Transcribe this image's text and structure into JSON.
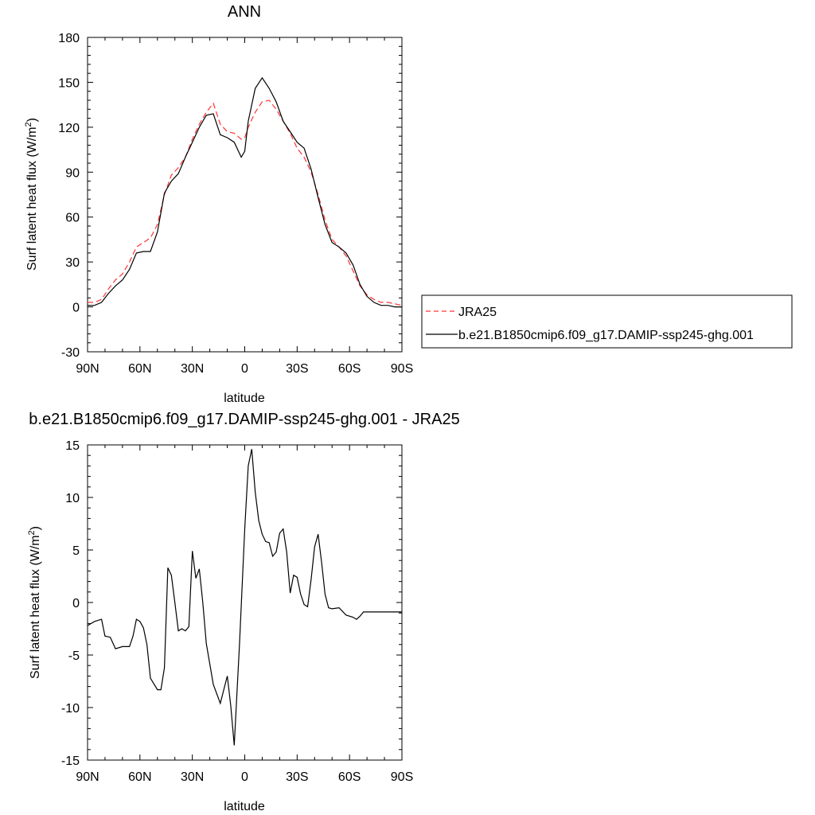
{
  "chart_data": [
    {
      "type": "line",
      "title": "ANN",
      "xlabel": "latitude",
      "ylabel": "Surf latent heat flux (W/m",
      "ylabel_sup": "2",
      "ylabel_close": ")",
      "xlim": [
        90,
        -90
      ],
      "ylim": [
        -30,
        180
      ],
      "x_tick_values": [
        90,
        60,
        30,
        0,
        -30,
        -60,
        -90
      ],
      "x_tick_labels": [
        "90N",
        "60N",
        "30N",
        "0",
        "30S",
        "60S",
        "90S"
      ],
      "y_tick_values": [
        -30,
        0,
        30,
        60,
        90,
        120,
        150,
        180
      ],
      "y_tick_labels": [
        "-30",
        "0",
        "30",
        "60",
        "90",
        "120",
        "150",
        "180"
      ],
      "legend_position": "right",
      "series": [
        {
          "name": "JRA25",
          "color": "#ff3333",
          "style": "dashed",
          "x": [
            90,
            86,
            82,
            78,
            74,
            70,
            66,
            62,
            58,
            54,
            50,
            46,
            42,
            38,
            34,
            30,
            26,
            22,
            18,
            14,
            10,
            6,
            2,
            0,
            -2,
            -6,
            -10,
            -14,
            -18,
            -22,
            -26,
            -30,
            -34,
            -38,
            -42,
            -46,
            -50,
            -54,
            -58,
            -62,
            -66,
            -70,
            -74,
            -78,
            -82,
            -86,
            -90
          ],
          "y": [
            3,
            3,
            5,
            12,
            18,
            22,
            30,
            40,
            43,
            46,
            55,
            75,
            88,
            93,
            100,
            112,
            122,
            130,
            136,
            122,
            117,
            116,
            112,
            113,
            120,
            130,
            137,
            138,
            132,
            124,
            116,
            106,
            100,
            90,
            75,
            58,
            45,
            40,
            34,
            24,
            14,
            8,
            5,
            3,
            3,
            2,
            1
          ]
        },
        {
          "name": "b.e21.B1850cmip6.f09_g17.DAMIP-ssp245-ghg.001",
          "color": "#000000",
          "style": "solid",
          "x": [
            90,
            86,
            82,
            78,
            74,
            70,
            66,
            62,
            58,
            54,
            50,
            46,
            42,
            38,
            34,
            30,
            26,
            22,
            18,
            14,
            10,
            6,
            2,
            0,
            -2,
            -6,
            -10,
            -14,
            -18,
            -22,
            -26,
            -30,
            -34,
            -38,
            -42,
            -46,
            -50,
            -54,
            -58,
            -62,
            -66,
            -70,
            -74,
            -78,
            -82,
            -86,
            -90
          ],
          "y": [
            1,
            1,
            3,
            9,
            14,
            18,
            25,
            36,
            37,
            37,
            50,
            76,
            84,
            89,
            100,
            110,
            120,
            128,
            129,
            115,
            113,
            110,
            100,
            104,
            124,
            146,
            153,
            146,
            137,
            124,
            117,
            110,
            106,
            92,
            73,
            55,
            43,
            40,
            36,
            28,
            15,
            7,
            3,
            1,
            1,
            0,
            0
          ]
        }
      ]
    },
    {
      "type": "line",
      "title": "b.e21.B1850cmip6.f09_g17.DAMIP-ssp245-ghg.001 - JRA25",
      "xlabel": "latitude",
      "ylabel": "Surf latent heat flux (W/m",
      "ylabel_sup": "2",
      "ylabel_close": ")",
      "xlim": [
        90,
        -90
      ],
      "ylim": [
        -15,
        15
      ],
      "x_tick_values": [
        90,
        60,
        30,
        0,
        -30,
        -60,
        -90
      ],
      "x_tick_labels": [
        "90N",
        "60N",
        "30N",
        "0",
        "30S",
        "60S",
        "90S"
      ],
      "y_tick_values": [
        -15,
        -10,
        -5,
        0,
        5,
        10,
        15
      ],
      "y_tick_labels": [
        "-15",
        "-10",
        "-5",
        "0",
        "5",
        "10",
        "15"
      ],
      "series": [
        {
          "color": "#000000",
          "style": "solid",
          "x": [
            90,
            86,
            82,
            80,
            77,
            74,
            70,
            66,
            64,
            62,
            60,
            58,
            56,
            54,
            50,
            48,
            46,
            44,
            42,
            40,
            38,
            36,
            34,
            32,
            30,
            28,
            26,
            24,
            22,
            18,
            14,
            10,
            8,
            6,
            3,
            0,
            -2,
            -4,
            -6,
            -8,
            -10,
            -12,
            -14,
            -16,
            -18,
            -20,
            -22,
            -24,
            -26,
            -28,
            -30,
            -32,
            -34,
            -36,
            -38,
            -40,
            -42,
            -44,
            -46,
            -48,
            -50,
            -54,
            -58,
            -62,
            -64,
            -66,
            -68,
            -70,
            -74,
            -78,
            -80,
            -82,
            -86,
            -90
          ],
          "y": [
            -2.2,
            -1.8,
            -1.6,
            -3.2,
            -3.3,
            -4.4,
            -4.2,
            -4.2,
            -3.2,
            -1.6,
            -1.8,
            -2.4,
            -4.0,
            -7.2,
            -8.3,
            -8.3,
            -6.2,
            3.3,
            2.6,
            0.0,
            -2.7,
            -2.5,
            -2.7,
            -2.3,
            4.9,
            2.3,
            3.2,
            0.0,
            -3.9,
            -7.8,
            -9.6,
            -7.0,
            -9.8,
            -13.6,
            -4.0,
            7.0,
            13.0,
            14.6,
            10.5,
            7.8,
            6.5,
            5.8,
            5.7,
            4.4,
            4.8,
            6.6,
            7.0,
            4.8,
            0.9,
            2.6,
            2.4,
            0.8,
            -0.2,
            -0.4,
            2.2,
            5.3,
            6.5,
            3.8,
            0.8,
            -0.5,
            -0.6,
            -0.5,
            -1.2,
            -1.4,
            -1.6,
            -1.3,
            -0.9,
            -0.9,
            -0.9,
            -0.9,
            -0.9,
            -0.9,
            -0.9,
            -0.9
          ]
        }
      ]
    }
  ]
}
